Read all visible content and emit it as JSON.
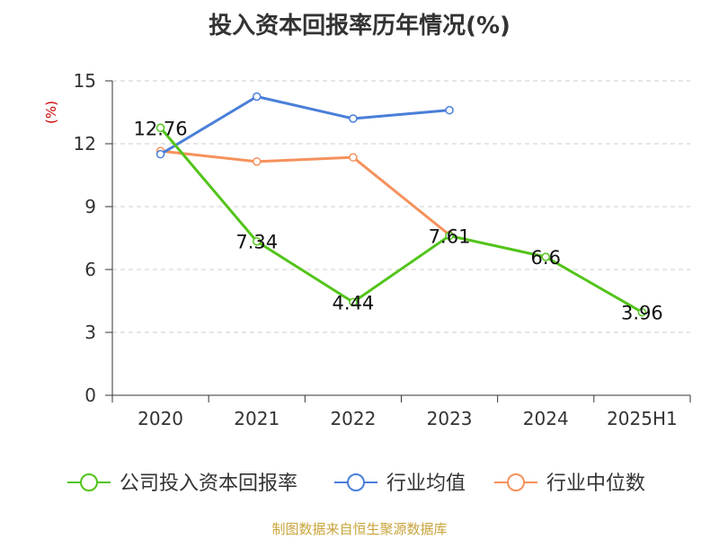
{
  "chart_data": {
    "type": "line",
    "title": "投入资本回报率历年情况(%)",
    "ylabel": "(%)",
    "xlabel": "",
    "categories": [
      "2020",
      "2021",
      "2022",
      "2023",
      "2024",
      "2025H1"
    ],
    "ylim": [
      0,
      15
    ],
    "yticks": [
      "0",
      "3",
      "6",
      "9",
      "12",
      "15"
    ],
    "grid": true,
    "legend_position": "bottom",
    "series": [
      {
        "name": "公司投入资本回报率",
        "color": "#52c41a",
        "values": [
          12.76,
          7.34,
          4.44,
          7.61,
          6.6,
          3.96
        ],
        "labels": [
          "12.76",
          "7.34",
          "4.44",
          "7.61",
          "6.6",
          "3.96"
        ]
      },
      {
        "name": "行业均值",
        "color": "#4a7fd9",
        "values": [
          11.5,
          14.25,
          13.2,
          13.6,
          null,
          null
        ]
      },
      {
        "name": "行业中位数",
        "color": "#f5915c",
        "values": [
          11.65,
          11.15,
          11.35,
          7.65,
          null,
          null
        ]
      }
    ],
    "source": "制图数据来自恒生聚源数据库"
  }
}
